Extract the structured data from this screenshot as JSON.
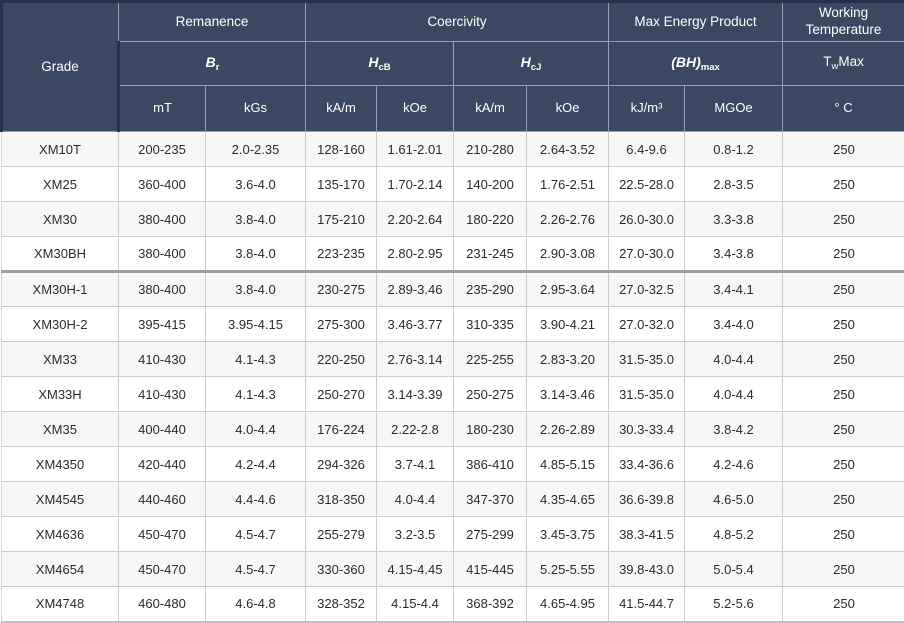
{
  "chart_data": {
    "type": "table",
    "title": "Magnet grade magnetic properties table",
    "columns": [
      "Grade",
      "Remanence Br mT",
      "Remanence Br kGs",
      "Coercivity HcB kA/m",
      "Coercivity HcB kOe",
      "Coercivity HcJ kA/m",
      "Coercivity HcJ kOe",
      "Max Energy Product (BH)max kJ/m3",
      "Max Energy Product (BH)max MGOe",
      "Working Temperature TwMax C"
    ],
    "rows": [
      [
        "XM10T",
        "200-235",
        "2.0-2.35",
        "128-160",
        "1.61-2.01",
        "210-280",
        "2.64-3.52",
        "6.4-9.6",
        "0.8-1.2",
        "250"
      ],
      [
        "XM25",
        "360-400",
        "3.6-4.0",
        "135-170",
        "1.70-2.14",
        "140-200",
        "1.76-2.51",
        "22.5-28.0",
        "2.8-3.5",
        "250"
      ],
      [
        "XM30",
        "380-400",
        "3.8-4.0",
        "175-210",
        "2.20-2.64",
        "180-220",
        "2.26-2.76",
        "26.0-30.0",
        "3.3-3.8",
        "250"
      ],
      [
        "XM30BH",
        "380-400",
        "3.8-4.0",
        "223-235",
        "2.80-2.95",
        "231-245",
        "2.90-3.08",
        "27.0-30.0",
        "3.4-3.8",
        "250"
      ],
      [
        "XM30H-1",
        "380-400",
        "3.8-4.0",
        "230-275",
        "2.89-3.46",
        "235-290",
        "2.95-3.64",
        "27.0-32.5",
        "3.4-4.1",
        "250"
      ],
      [
        "XM30H-2",
        "395-415",
        "3.95-4.15",
        "275-300",
        "3.46-3.77",
        "310-335",
        "3.90-4.21",
        "27.0-32.0",
        "3.4-4.0",
        "250"
      ],
      [
        "XM33",
        "410-430",
        "4.1-4.3",
        "220-250",
        "2.76-3.14",
        "225-255",
        "2.83-3.20",
        "31.5-35.0",
        "4.0-4.4",
        "250"
      ],
      [
        "XM33H",
        "410-430",
        "4.1-4.3",
        "250-270",
        "3.14-3.39",
        "250-275",
        "3.14-3.46",
        "31.5-35.0",
        "4.0-4.4",
        "250"
      ],
      [
        "XM35",
        "400-440",
        "4.0-4.4",
        "176-224",
        "2.22-2.8",
        "180-230",
        "2.26-2.89",
        "30.3-33.4",
        "3.8-4.2",
        "250"
      ],
      [
        "XM4350",
        "420-440",
        "4.2-4.4",
        "294-326",
        "3.7-4.1",
        "386-410",
        "4.85-5.15",
        "33.4-36.6",
        "4.2-4.6",
        "250"
      ],
      [
        "XM4545",
        "440-460",
        "4.4-4.6",
        "318-350",
        "4.0-4.4",
        "347-370",
        "4.35-4.65",
        "36.6-39.8",
        "4.6-5.0",
        "250"
      ],
      [
        "XM4636",
        "450-470",
        "4.5-4.7",
        "255-279",
        "3.2-3.5",
        "275-299",
        "3.45-3.75",
        "38.3-41.5",
        "4.8-5.2",
        "250"
      ],
      [
        "XM4654",
        "450-470",
        "4.5-4.7",
        "330-360",
        "4.15-4.45",
        "415-445",
        "5.25-5.55",
        "39.8-43.0",
        "5.0-5.4",
        "250"
      ],
      [
        "XM4748",
        "460-480",
        "4.6-4.8",
        "328-352",
        "4.15-4.4",
        "368-392",
        "4.65-4.95",
        "41.5-44.7",
        "5.2-5.6",
        "250"
      ]
    ]
  },
  "table": {
    "header": {
      "grade_label": "Grade",
      "groups": [
        {
          "label": "Remanence"
        },
        {
          "label": "Coercivity"
        },
        {
          "label": "Max Energy Product"
        },
        {
          "label": "Working Temperature"
        }
      ],
      "symbols": {
        "br": {
          "main": "B",
          "sub": "r"
        },
        "hcb": {
          "main": "H",
          "sub": "cB"
        },
        "hcj": {
          "main": "H",
          "sub": "cJ"
        },
        "bhmax": {
          "main": "(BH)",
          "sub": "max"
        },
        "twmax": {
          "main": "T",
          "sub": "w",
          "suffix": "Max"
        }
      },
      "units": [
        "mT",
        "kGs",
        "kA/m",
        "kOe",
        "kA/m",
        "kOe",
        "kJ/m³",
        "MGOe",
        "° C"
      ]
    }
  },
  "colors": {
    "header_bg": "#3a4961",
    "header_grid": "#97a0b2",
    "header_outer_edge": "#27314a",
    "row_alt_bg": "#f7f7f7",
    "body_grid": "#cbcbcb",
    "thick_divider": "#9aa0a6",
    "body_text": "#2b2b2b"
  }
}
